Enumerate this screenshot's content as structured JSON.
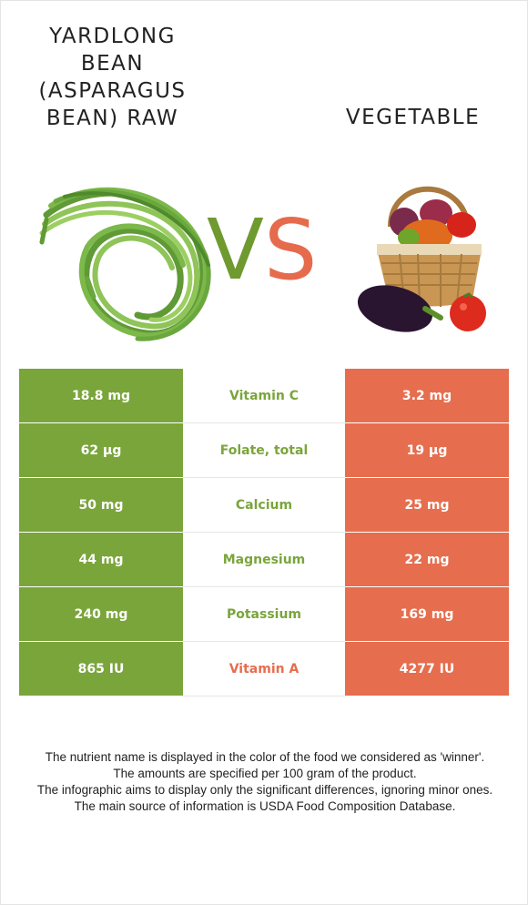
{
  "left_food": {
    "title": "YARDLONG BEAN (ASPARAGUS BEAN) RAW",
    "color": "#7aa53b"
  },
  "right_food": {
    "title": "VEGETABLE",
    "color": "#e66e4e"
  },
  "vs": {
    "v": "V",
    "s": "S"
  },
  "rows": [
    {
      "left": "18.8 mg",
      "nutrient": "Vitamin C",
      "right": "3.2 mg",
      "winner": "left"
    },
    {
      "left": "62 µg",
      "nutrient": "Folate, total",
      "right": "19 µg",
      "winner": "left"
    },
    {
      "left": "50 mg",
      "nutrient": "Calcium",
      "right": "25 mg",
      "winner": "left"
    },
    {
      "left": "44 mg",
      "nutrient": "Magnesium",
      "right": "22 mg",
      "winner": "left"
    },
    {
      "left": "240 mg",
      "nutrient": "Potassium",
      "right": "169 mg",
      "winner": "left"
    },
    {
      "left": "865 IU",
      "nutrient": "Vitamin A",
      "right": "4277 IU",
      "winner": "right"
    }
  ],
  "footnote": [
    "The nutrient name is displayed in the color of the food we considered as 'winner'.",
    "The amounts are specified per 100 gram of the product.",
    "The infographic aims to display only the significant differences, ignoring minor ones.",
    "The main source of information is USDA Food Composition Database."
  ]
}
